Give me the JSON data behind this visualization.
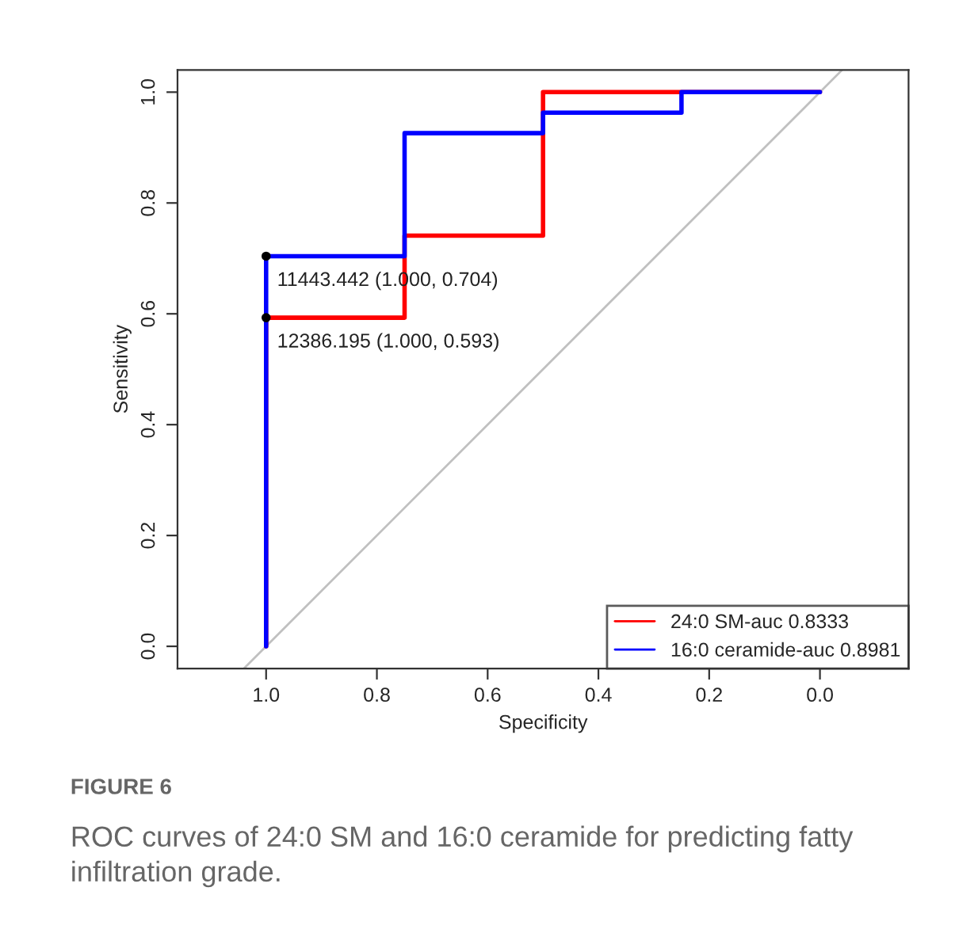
{
  "chart_data": {
    "type": "line",
    "xlabel": "Specificity",
    "ylabel": "Sensitivity",
    "xlim": [
      1.16,
      -0.16
    ],
    "ylim": [
      -0.04,
      1.04
    ],
    "xticks": [
      {
        "value": 1,
        "label": "1.0"
      },
      0.8,
      0.6,
      0.4,
      0.2,
      {
        "value": 0,
        "label": "0.0"
      }
    ],
    "yticks": [
      {
        "value": 0,
        "label": "0.0"
      },
      0.2,
      0.4,
      0.6,
      0.8,
      {
        "value": 1,
        "label": "1.0"
      }
    ],
    "grid": false,
    "legend": "bottom right",
    "line_style": "solid",
    "series": [
      {
        "name": "24:0 SM-auc 0.8333",
        "color": "#ff0000",
        "x": [
          1,
          1,
          0.75,
          0.75,
          0.5,
          0.5,
          0
        ],
        "values": [
          0,
          0.593,
          0.593,
          0.741,
          0.741,
          1.0,
          1.0
        ]
      },
      {
        "name": "16:0 ceramide-auc 0.8981",
        "color": "#0000ff",
        "x": [
          1,
          1,
          0.75,
          0.75,
          0.5,
          0.5,
          0.25,
          0.25,
          0
        ],
        "values": [
          0,
          0.704,
          0.704,
          0.926,
          0.926,
          0.963,
          0.963,
          1.0,
          1.0
        ]
      },
      {
        "color": "#c0c0c0",
        "x": [
          1.04,
          -0.04
        ],
        "values": [
          -0.04,
          1.04
        ]
      },
      {
        "type": "scatter",
        "marker": "circle",
        "color": "#000000",
        "x": [
          1,
          1
        ],
        "values": [
          0.704,
          0.593
        ]
      }
    ],
    "annotations": [
      {
        "text": "11443.442 (1.000, 0.704)",
        "x": 1,
        "y": 0.704
      },
      {
        "text": "12386.195 (1.000, 0.593)",
        "x": 1,
        "y": 0.593
      },
      "FIGURE 6",
      "ROC curves of 24:0 SM and 16:0 ceramide for predicting fatty infiltration grade."
    ]
  }
}
